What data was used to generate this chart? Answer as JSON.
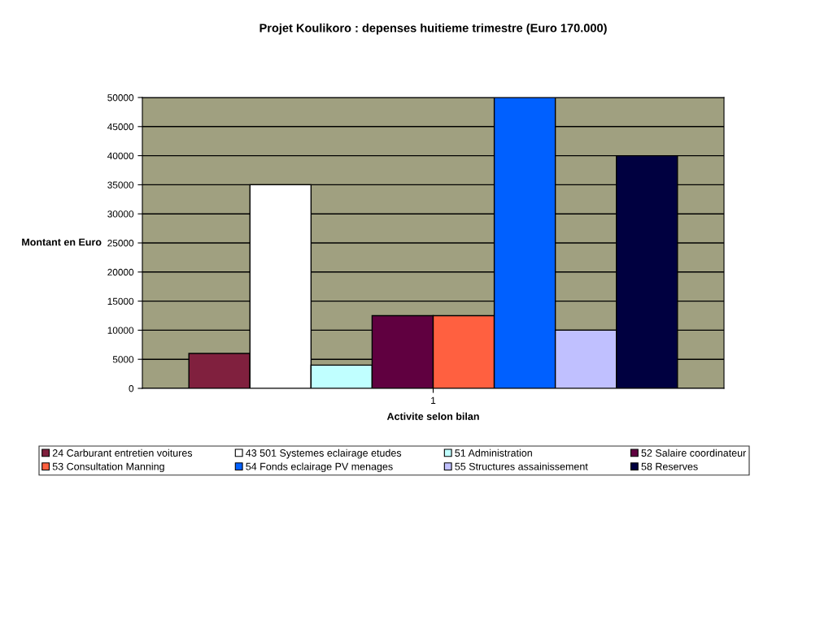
{
  "chart_data": {
    "type": "bar",
    "title": "Projet Koulikoro : depenses huitieme trimestre (Euro 170.000)",
    "xlabel": "Activite selon bilan",
    "ylabel": "Montant en Euro",
    "categories": [
      "1"
    ],
    "series": [
      {
        "name": "24 Carburant entretien voitures",
        "color": "#80203e",
        "values": [
          6000
        ]
      },
      {
        "name": "43 501 Systemes eclairage etudes",
        "color": "#ffffff",
        "values": [
          35000
        ]
      },
      {
        "name": "51 Administration",
        "color": "#c0ffff",
        "values": [
          4000
        ]
      },
      {
        "name": "52 Salaire coordinateur",
        "color": "#600040",
        "values": [
          12500
        ]
      },
      {
        "name": "53 Consultation Manning",
        "color": "#ff6040",
        "values": [
          12500
        ]
      },
      {
        "name": "54 Fonds eclairage PV menages",
        "color": "#0060ff",
        "values": [
          50000
        ]
      },
      {
        "name": "55 Structures assainissement",
        "color": "#c0c0ff",
        "values": [
          10000
        ]
      },
      {
        "name": "58 Reserves",
        "color": "#000040",
        "values": [
          40000
        ]
      }
    ],
    "ylim": [
      0,
      50000
    ],
    "yticks": [
      0,
      5000,
      10000,
      15000,
      20000,
      25000,
      30000,
      35000,
      40000,
      45000,
      50000
    ],
    "grid": "y",
    "legend": "bottom"
  }
}
